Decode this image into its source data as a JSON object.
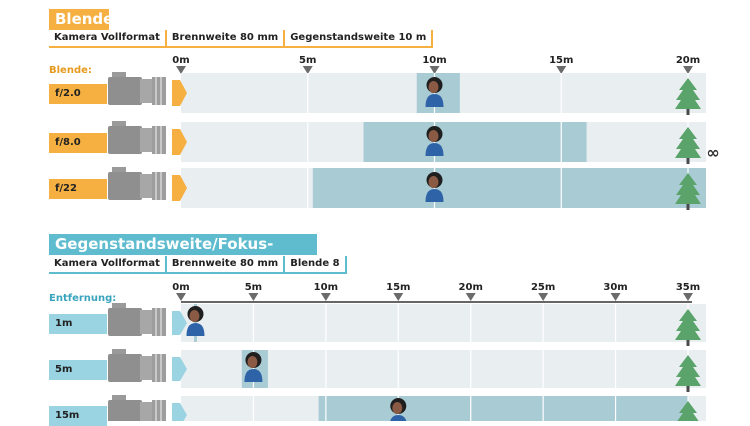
{
  "colors": {
    "orange": "#f5b041",
    "orange_dark": "#e79b1e",
    "cyan": "#5fbccf",
    "cyan_light": "#9ad4e2",
    "band": "#e9eef1",
    "band_focus": "#a9cbd4",
    "marker": "#6b6b6b",
    "tree": "#5aa36a",
    "skin": "#8a5a44",
    "hair": "#1f1f1f",
    "shirt": "#2e63a8"
  },
  "aperture": {
    "title": "Blende",
    "params": [
      "Kamera Vollformat",
      "Brennweite 80 mm",
      "Gegenstandsweite 10 m"
    ],
    "axis_label": "Blende:",
    "ticks": [
      {
        "label": "0m",
        "value": 0
      },
      {
        "label": "5m",
        "value": 5
      },
      {
        "label": "10m",
        "value": 10
      },
      {
        "label": "15m",
        "value": 15
      },
      {
        "label": "20m",
        "value": 20
      }
    ],
    "max": 20,
    "infinity": "∞",
    "rows": [
      {
        "label": "f/2.0",
        "dof": [
          9.3,
          11.0
        ],
        "subject": 10
      },
      {
        "label": "f/8.0",
        "dof": [
          7.2,
          16.0
        ],
        "subject": 10
      },
      {
        "label": "f/22",
        "dof": [
          5.2,
          20.8
        ],
        "subject": 10
      }
    ]
  },
  "focus": {
    "title": "Gegenstandsweite/Fokus-Entfernung",
    "params": [
      "Kamera Vollformat",
      "Brennweite 80 mm",
      "Blende 8"
    ],
    "axis_label": "Entfernung:",
    "ticks": [
      {
        "label": "0m",
        "value": 0
      },
      {
        "label": "5m",
        "value": 5
      },
      {
        "label": "10m",
        "value": 10
      },
      {
        "label": "15m",
        "value": 15
      },
      {
        "label": "20m",
        "value": 20
      },
      {
        "label": "25m",
        "value": 25
      },
      {
        "label": "30m",
        "value": 30
      },
      {
        "label": "35m",
        "value": 35
      }
    ],
    "max": 35,
    "rows": [
      {
        "label": "1m",
        "dof": [
          0.9,
          1.1
        ],
        "subject": 1
      },
      {
        "label": "5m",
        "dof": [
          4.2,
          6.0
        ],
        "subject": 5
      },
      {
        "label": "15m",
        "dof": [
          9.5,
          35
        ],
        "subject": 15
      }
    ]
  }
}
